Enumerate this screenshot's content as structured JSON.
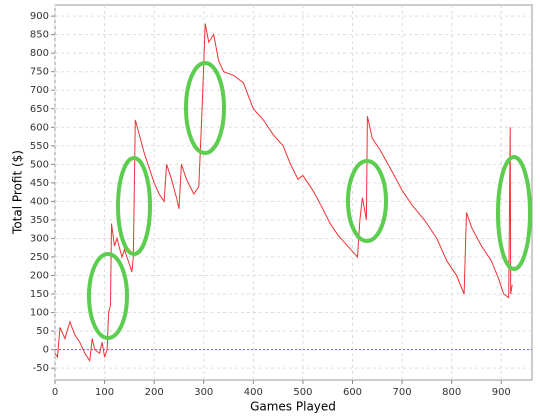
{
  "chart_data": {
    "type": "line",
    "x_label": "Games Played",
    "y_label": "Total Profit ($)",
    "x": [
      0,
      5,
      10,
      20,
      30,
      40,
      50,
      60,
      70,
      75,
      80,
      90,
      95,
      100,
      105,
      108,
      112,
      114,
      120,
      125,
      135,
      140,
      150,
      155,
      158,
      162,
      170,
      180,
      190,
      200,
      210,
      220,
      225,
      235,
      245,
      250,
      255,
      265,
      280,
      290,
      295,
      298,
      303,
      310,
      320,
      330,
      340,
      360,
      380,
      400,
      420,
      440,
      460,
      475,
      490,
      500,
      520,
      540,
      555,
      570,
      590,
      610,
      615,
      620,
      628,
      630,
      640,
      655,
      680,
      700,
      720,
      745,
      770,
      790,
      810,
      825,
      830,
      840,
      860,
      880,
      895,
      905,
      915,
      918,
      919,
      922
    ],
    "series": [
      {
        "name": "Total Profit",
        "color": "#ee3333",
        "values": [
          -10,
          -20,
          60,
          30,
          75,
          40,
          20,
          -10,
          -30,
          30,
          0,
          -10,
          20,
          -20,
          0,
          100,
          120,
          340,
          280,
          300,
          250,
          270,
          230,
          210,
          250,
          620,
          580,
          530,
          490,
          450,
          420,
          400,
          500,
          460,
          410,
          380,
          500,
          460,
          420,
          440,
          600,
          700,
          880,
          830,
          850,
          780,
          750,
          740,
          720,
          650,
          620,
          580,
          550,
          500,
          460,
          470,
          430,
          380,
          340,
          310,
          280,
          250,
          350,
          410,
          350,
          630,
          570,
          540,
          480,
          430,
          390,
          350,
          300,
          240,
          200,
          150,
          370,
          330,
          280,
          240,
          190,
          150,
          140,
          600,
          150,
          175
        ]
      }
    ],
    "xlim": [
      0,
      962
    ],
    "ylim": [
      -82,
      930
    ],
    "xticks": [
      0,
      100,
      200,
      300,
      400,
      500,
      600,
      700,
      800,
      900
    ],
    "yticks": [
      -50,
      0,
      50,
      100,
      150,
      200,
      250,
      300,
      350,
      400,
      450,
      500,
      550,
      600,
      650,
      700,
      750,
      800,
      850,
      900
    ],
    "grid": true,
    "zero_line": {
      "value": 0,
      "color": "#6f6fc8"
    }
  }
}
